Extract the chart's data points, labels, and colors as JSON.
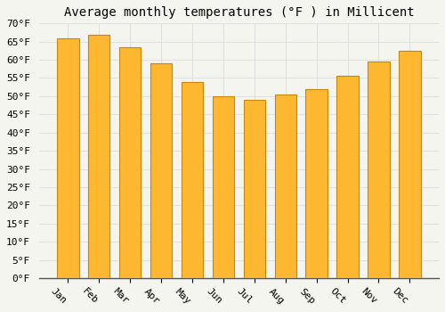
{
  "title": "Average monthly temperatures (°F ) in Millicent",
  "months": [
    "Jan",
    "Feb",
    "Mar",
    "Apr",
    "May",
    "Jun",
    "Jul",
    "Aug",
    "Sep",
    "Oct",
    "Nov",
    "Dec"
  ],
  "values": [
    66,
    67,
    63.5,
    59,
    54,
    50,
    49,
    50.5,
    52,
    55.5,
    59.5,
    62.5
  ],
  "bar_color": "#FDB731",
  "bar_edge_color": "#C8860A",
  "ylim": [
    0,
    70
  ],
  "yticks": [
    0,
    5,
    10,
    15,
    20,
    25,
    30,
    35,
    40,
    45,
    50,
    55,
    60,
    65,
    70
  ],
  "background_color": "#F5F5F0",
  "grid_color": "#E0E0E0",
  "title_fontsize": 10,
  "tick_fontsize": 8,
  "font_family": "monospace",
  "xlabel_rotation": -45
}
